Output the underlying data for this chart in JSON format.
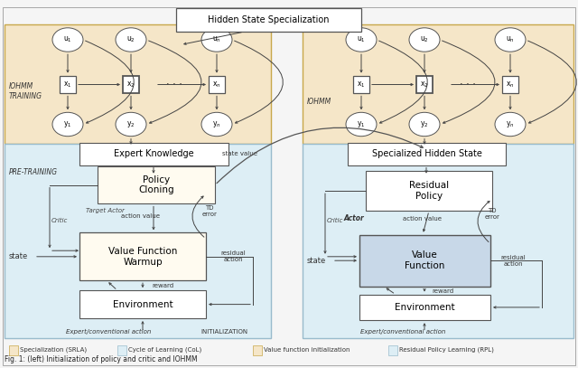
{
  "fig_w": 6.4,
  "fig_h": 4.07,
  "dpi": 100,
  "bg_color": "#f5f5f5",
  "iohmm_bg_color": "#f5e6c8",
  "iohmm_bg_edge": "#c8a84b",
  "pretrain_bg_color": "#ddeef5",
  "pretrain_bg_edge": "#99bbcc",
  "rpl_bg_color": "#ddeef5",
  "legend": [
    {
      "label": "Specialization (SRLA)",
      "fc": "#f5e6c8",
      "ec": "#c8a84b"
    },
    {
      "label": "Cycle of Learning (CoL)",
      "fc": "#ddeef5",
      "ec": "#99bbcc"
    },
    {
      "label": "Value function initialization",
      "fc": "#f5e6c8",
      "ec": "#c8a84b"
    },
    {
      "label": "Residual Policy Learning (RPL)",
      "fc": "#ddeef5",
      "ec": "#99bbcc"
    }
  ]
}
